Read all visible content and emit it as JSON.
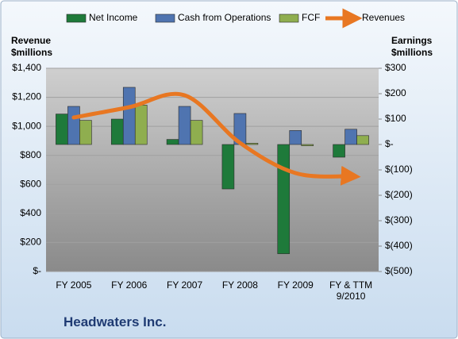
{
  "chart_data": {
    "type": "bar",
    "title": "Headwaters Inc.",
    "y_label": "Revenue $millions",
    "y2_label": "Earnings $millions",
    "categories": [
      "FY 2005",
      "FY 2006",
      "FY 2007",
      "FY 2008",
      "FY 2009",
      "FY & TTM 9/2010"
    ],
    "series": [
      {
        "name": "Net Income",
        "color": "#1e7a3a",
        "axis": "y2",
        "values": [
          120,
          100,
          20,
          -175,
          -430,
          -50
        ]
      },
      {
        "name": "Cash from Operations",
        "color": "#4f74b0",
        "axis": "y2",
        "values": [
          150,
          225,
          150,
          122,
          55,
          60
        ]
      },
      {
        "name": "FCF",
        "color": "#8fae4f",
        "axis": "y2",
        "values": [
          95,
          155,
          95,
          5,
          -5,
          35
        ]
      },
      {
        "name": "Revenues",
        "color": "#e87722",
        "type": "line",
        "values": [
          1061,
          1132,
          1214,
          886,
          678,
          656
        ]
      }
    ],
    "ylim": [
      0,
      1400
    ],
    "yticks": [
      {
        "value": 0,
        "label": "$-"
      },
      {
        "value": 200,
        "label": "$200"
      },
      {
        "value": 400,
        "label": "$400"
      },
      {
        "value": 600,
        "label": "$600"
      },
      {
        "value": 800,
        "label": "$800"
      },
      {
        "value": 1000,
        "label": "$1,000"
      },
      {
        "value": 1200,
        "label": "$1,200"
      },
      {
        "value": 1400,
        "label": "$1,400"
      }
    ],
    "y2lim": [
      -500,
      300
    ],
    "y2ticks": [
      {
        "value": -500,
        "label": "$(500)"
      },
      {
        "value": -400,
        "label": "$(400)"
      },
      {
        "value": -300,
        "label": "$(300)"
      },
      {
        "value": -200,
        "label": "$(200)"
      },
      {
        "value": -100,
        "label": "$(100)"
      },
      {
        "value": 0,
        "label": "$-"
      },
      {
        "value": 100,
        "label": "$100"
      },
      {
        "value": 200,
        "label": "$200"
      },
      {
        "value": 300,
        "label": "$300"
      }
    ],
    "grid": true,
    "legend": "top"
  }
}
